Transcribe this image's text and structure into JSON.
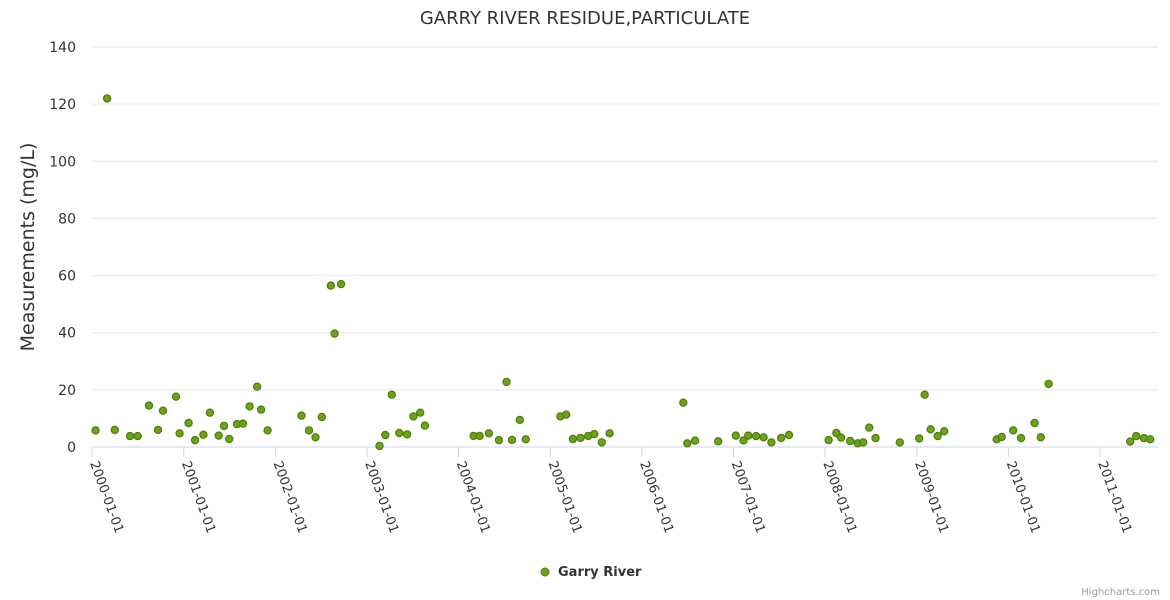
{
  "chart_data": {
    "type": "scatter",
    "title": "GARRY RIVER RESIDUE,PARTICULATE",
    "ylabel": "Measurements (mg/L)",
    "xlabel": "",
    "ylim": [
      0,
      140
    ],
    "y_ticks": [
      "0",
      "20",
      "40",
      "60",
      "80",
      "100",
      "120",
      "140"
    ],
    "x_ticks": [
      "2000-01-01",
      "2001-01-01",
      "2002-01-01",
      "2003-01-01",
      "2004-01-01",
      "2005-01-01",
      "2006-01-01",
      "2007-01-01",
      "2008-01-01",
      "2009-01-01",
      "2010-01-01",
      "2011-01-01"
    ],
    "x_range": [
      "2000-01-01",
      "2011-08-20"
    ],
    "grid": true,
    "legend_position": "bottom-center",
    "series": [
      {
        "name": "Garry River",
        "color": "#6aa612",
        "points": [
          [
            "2000-01-15",
            5.8
          ],
          [
            "2000-03-01",
            122
          ],
          [
            "2000-04-01",
            6.0
          ],
          [
            "2000-06-01",
            3.8
          ],
          [
            "2000-07-01",
            3.8
          ],
          [
            "2000-08-15",
            14.5
          ],
          [
            "2000-09-20",
            6.0
          ],
          [
            "2000-10-10",
            12.7
          ],
          [
            "2000-12-01",
            17.6
          ],
          [
            "2000-12-15",
            4.8
          ],
          [
            "2001-01-20",
            8.4
          ],
          [
            "2001-02-15",
            2.4
          ],
          [
            "2001-03-20",
            4.3
          ],
          [
            "2001-04-15",
            12.0
          ],
          [
            "2001-05-20",
            4.0
          ],
          [
            "2001-06-10",
            7.4
          ],
          [
            "2001-07-01",
            2.8
          ],
          [
            "2001-08-01",
            8.0
          ],
          [
            "2001-08-25",
            8.2
          ],
          [
            "2001-09-20",
            14.2
          ],
          [
            "2001-10-20",
            21.1
          ],
          [
            "2001-11-05",
            13.1
          ],
          [
            "2001-12-01",
            5.8
          ],
          [
            "2002-04-15",
            11.0
          ],
          [
            "2002-05-15",
            5.8
          ],
          [
            "2002-06-10",
            3.4
          ],
          [
            "2002-07-05",
            10.5
          ],
          [
            "2002-08-10",
            56.5
          ],
          [
            "2002-08-25",
            39.7
          ],
          [
            "2002-09-20",
            57.0
          ],
          [
            "2003-02-20",
            0.4
          ],
          [
            "2003-03-15",
            4.2
          ],
          [
            "2003-04-10",
            18.3
          ],
          [
            "2003-05-10",
            4.9
          ],
          [
            "2003-06-10",
            4.4
          ],
          [
            "2003-07-05",
            10.7
          ],
          [
            "2003-08-01",
            12.0
          ],
          [
            "2003-08-20",
            7.5
          ],
          [
            "2004-03-01",
            3.9
          ],
          [
            "2004-03-25",
            3.9
          ],
          [
            "2004-05-01",
            4.8
          ],
          [
            "2004-06-10",
            2.4
          ],
          [
            "2004-07-10",
            22.8
          ],
          [
            "2004-08-01",
            2.5
          ],
          [
            "2004-09-01",
            9.5
          ],
          [
            "2004-09-25",
            2.7
          ],
          [
            "2005-02-10",
            10.7
          ],
          [
            "2005-03-05",
            11.3
          ],
          [
            "2005-04-01",
            2.8
          ],
          [
            "2005-05-01",
            3.2
          ],
          [
            "2005-06-01",
            3.9
          ],
          [
            "2005-06-25",
            4.5
          ],
          [
            "2005-07-25",
            1.6
          ],
          [
            "2005-08-25",
            4.8
          ],
          [
            "2006-06-15",
            15.5
          ],
          [
            "2006-07-01",
            1.3
          ],
          [
            "2006-08-01",
            2.2
          ],
          [
            "2006-11-01",
            2.0
          ],
          [
            "2007-01-10",
            4.0
          ],
          [
            "2007-02-10",
            2.3
          ],
          [
            "2007-03-01",
            4.0
          ],
          [
            "2007-04-01",
            3.8
          ],
          [
            "2007-05-01",
            3.4
          ],
          [
            "2007-06-01",
            1.6
          ],
          [
            "2007-07-10",
            3.2
          ],
          [
            "2007-08-10",
            4.2
          ],
          [
            "2008-01-15",
            2.4
          ],
          [
            "2008-02-15",
            4.9
          ],
          [
            "2008-03-05",
            3.3
          ],
          [
            "2008-04-10",
            2.1
          ],
          [
            "2008-05-10",
            1.3
          ],
          [
            "2008-06-01",
            1.6
          ],
          [
            "2008-06-25",
            6.8
          ],
          [
            "2008-07-20",
            3.1
          ],
          [
            "2008-10-25",
            1.6
          ],
          [
            "2009-01-10",
            3.0
          ],
          [
            "2009-02-01",
            18.3
          ],
          [
            "2009-02-25",
            6.2
          ],
          [
            "2009-03-25",
            3.8
          ],
          [
            "2009-04-20",
            5.5
          ],
          [
            "2009-11-15",
            2.7
          ],
          [
            "2009-12-05",
            3.5
          ],
          [
            "2010-01-20",
            5.8
          ],
          [
            "2010-02-20",
            3.1
          ],
          [
            "2010-04-15",
            8.4
          ],
          [
            "2010-05-10",
            3.4
          ],
          [
            "2010-06-10",
            22.1
          ],
          [
            "2011-05-01",
            1.9
          ],
          [
            "2011-05-25",
            3.8
          ],
          [
            "2011-06-25",
            3.1
          ],
          [
            "2011-07-20",
            2.7
          ]
        ]
      }
    ]
  },
  "credits": "Highcharts.com"
}
